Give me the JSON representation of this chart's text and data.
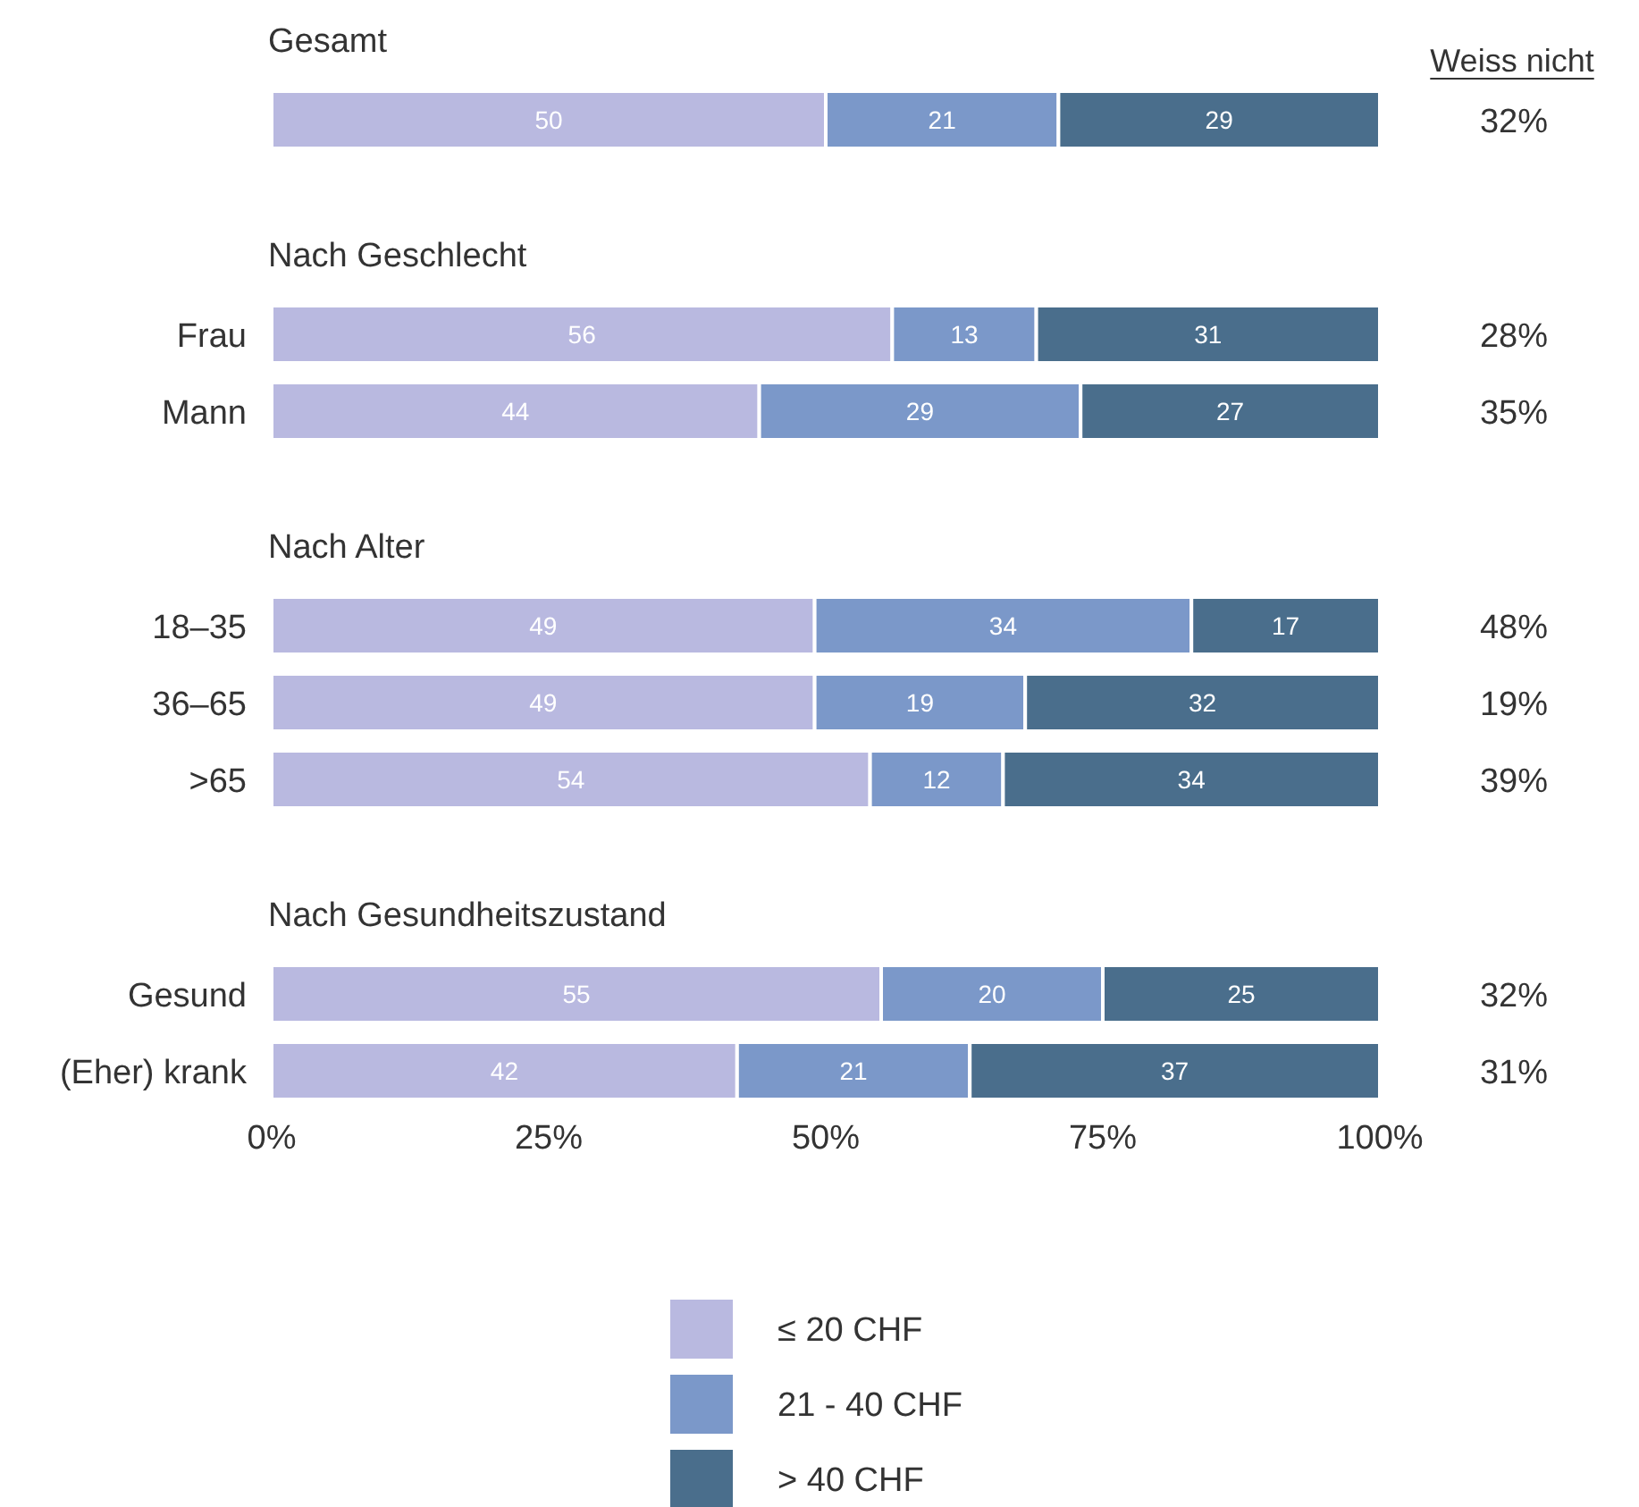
{
  "chart_data": {
    "type": "bar",
    "orientation": "horizontal",
    "stacked": true,
    "data_labels": true,
    "legend": "bottom",
    "categories": [
      "Gesamt",
      null,
      "Nach Geschlecht",
      "Frau",
      "Mann",
      "Nach Alter",
      "18–35",
      "36–65",
      ">65",
      "Nach Gesundheitszustand",
      "Gesund",
      "(Eher) krank"
    ],
    "series": [
      {
        "name": "≤ 20 CHF",
        "color": "#b9b9e0",
        "values": [
          null,
          50,
          null,
          56,
          44,
          null,
          49,
          49,
          54,
          null,
          55,
          42
        ]
      },
      {
        "name": "21 - 40 CHF",
        "color": "#7b98c9",
        "values": [
          null,
          21,
          null,
          13,
          29,
          null,
          34,
          19,
          12,
          null,
          20,
          21
        ]
      },
      {
        "name": "> 40 CHF",
        "color": "#4a6e8c",
        "values": [
          null,
          29,
          null,
          31,
          27,
          null,
          17,
          32,
          34,
          null,
          25,
          37
        ]
      }
    ],
    "xlim": [
      0,
      100
    ],
    "xticks": [
      {
        "value": 0,
        "label": "0%"
      },
      {
        "value": 25,
        "label": "25%"
      },
      {
        "value": 50,
        "label": "50%"
      },
      {
        "value": 75,
        "label": "75%"
      },
      {
        "value": 100,
        "label": "100%"
      }
    ],
    "annotations": [
      "Weiss nicht",
      "32%",
      "28%",
      "35%",
      "48%",
      "19%",
      "39%",
      "32%",
      "31%"
    ]
  }
}
